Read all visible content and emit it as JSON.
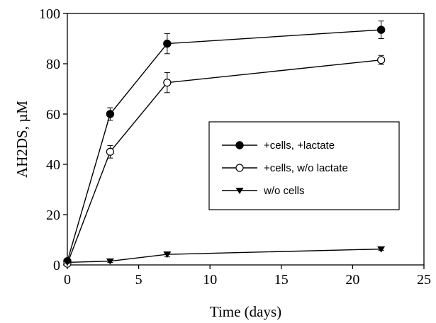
{
  "chart_data": {
    "type": "line",
    "title": "",
    "xlabel": "Time (days)",
    "ylabel": "AH2DS, µM",
    "xlim": [
      0,
      25
    ],
    "ylim": [
      0,
      100
    ],
    "xticks": [
      "0",
      "5",
      "10",
      "15",
      "20",
      "25"
    ],
    "yticks": [
      "0",
      "20",
      "40",
      "60",
      "80",
      "100"
    ],
    "grid": false,
    "legend_position": "right-middle",
    "x": [
      0,
      3,
      7,
      22
    ],
    "series": [
      {
        "name": "+cells, +lactate",
        "marker": "filled-circle",
        "color": "#000000",
        "values": [
          1.5,
          60,
          88,
          93.5
        ],
        "errors": [
          1.0,
          2.5,
          4.0,
          3.5
        ]
      },
      {
        "name": "+cells, w/o lactate",
        "marker": "open-circle",
        "color": "#000000",
        "values": [
          0.5,
          45,
          72.5,
          81.5
        ],
        "errors": [
          0.5,
          2.5,
          4.0,
          1.8
        ]
      },
      {
        "name": "w/o cells",
        "marker": "filled-triangle-down",
        "color": "#000000",
        "values": [
          1,
          1.5,
          4.2,
          6.3
        ],
        "errors": [
          0.3,
          0.5,
          1.0,
          0.5
        ]
      }
    ]
  }
}
